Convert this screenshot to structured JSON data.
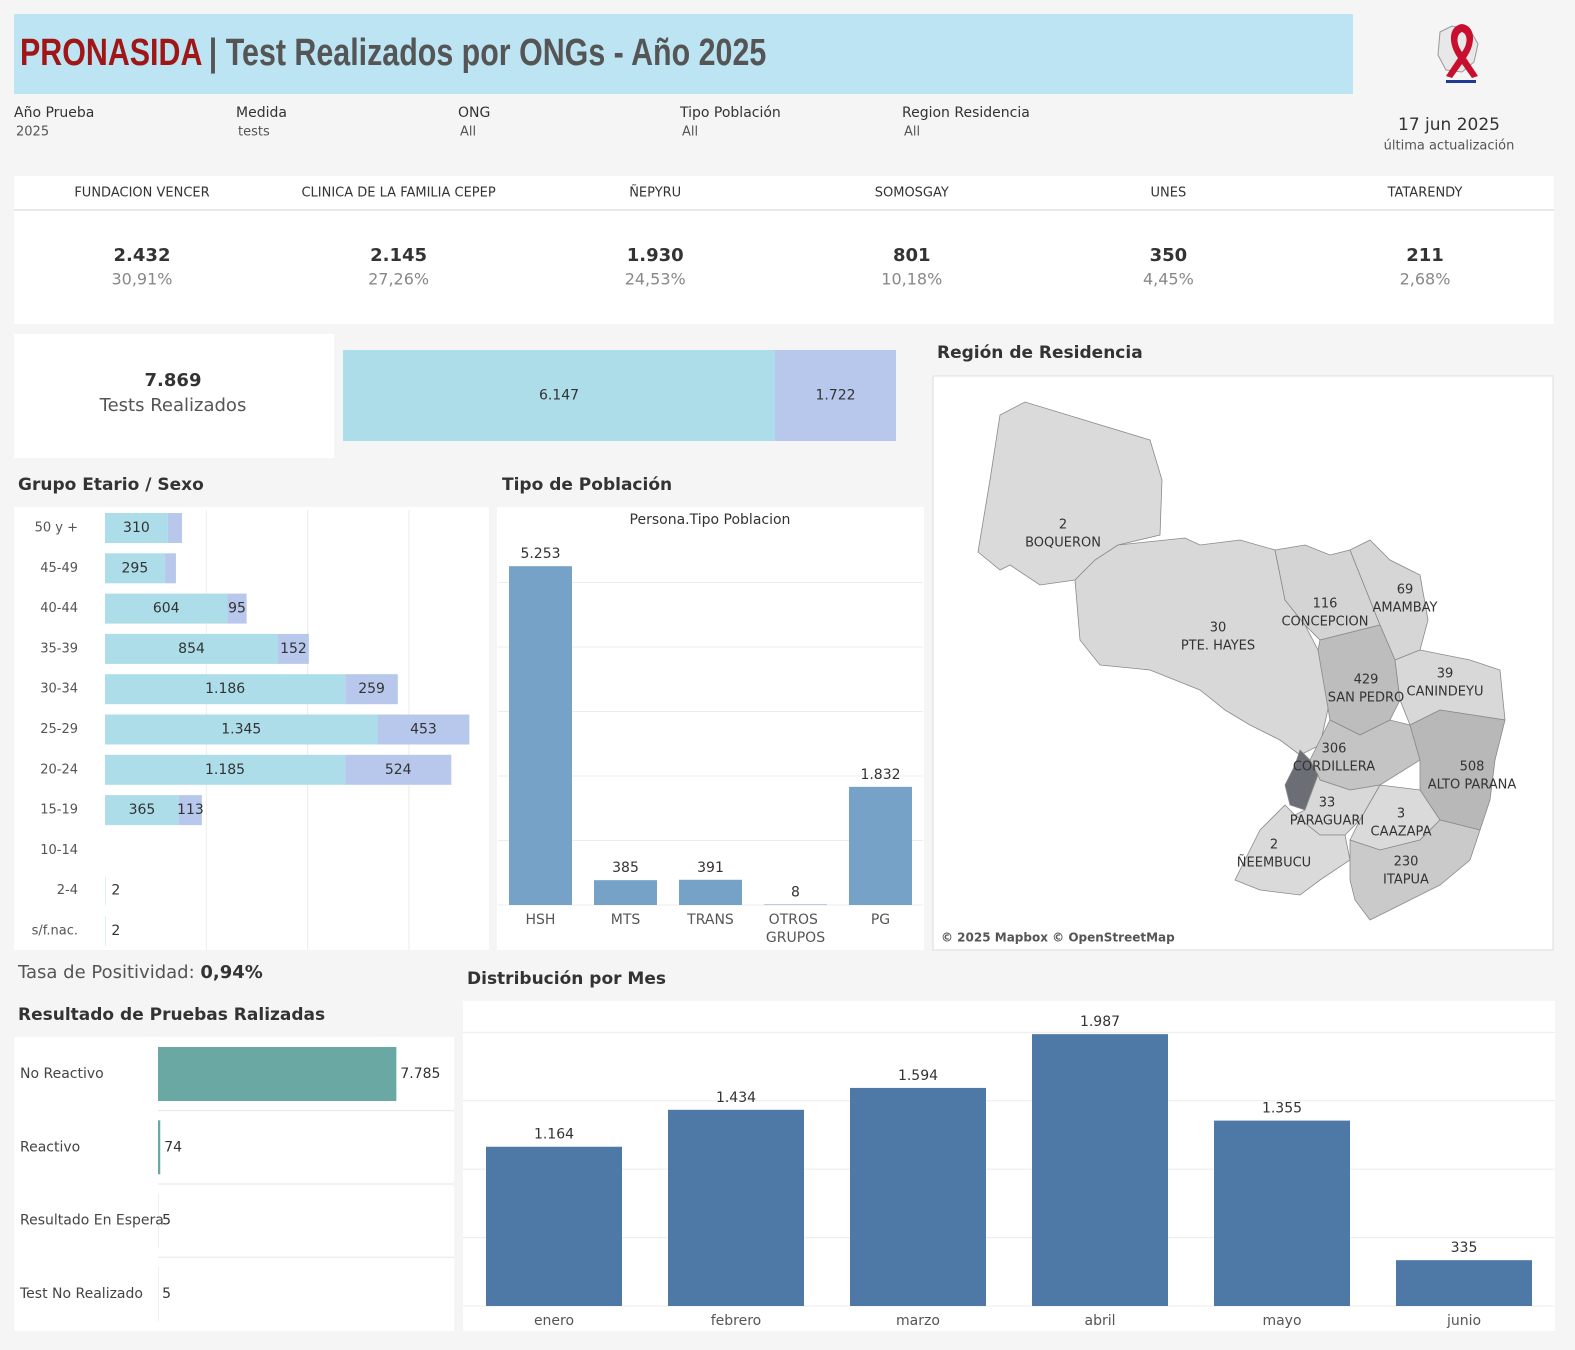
{
  "header": {
    "brand": "PRONASIDA",
    "title": "| Test Realizados por ONGs - Año 2025"
  },
  "update": {
    "date": "17 jun 2025",
    "label": "última actualización"
  },
  "filters": [
    {
      "label": "Año Prueba",
      "value": "2025"
    },
    {
      "label": "Medida",
      "value": "tests"
    },
    {
      "label": "ONG",
      "value": "All"
    },
    {
      "label": "Tipo Población",
      "value": "All"
    },
    {
      "label": "Region Residencia",
      "value": "All"
    }
  ],
  "ngos": [
    {
      "name": "FUNDACION VENCER",
      "value": "2.432",
      "share": "30,91%"
    },
    {
      "name": "CLINICA DE LA FAMILIA CEPEP",
      "value": "2.145",
      "share": "27,26%"
    },
    {
      "name": "ÑEPYRU",
      "value": "1.930",
      "share": "24,53%"
    },
    {
      "name": "SOMOSGAY",
      "value": "801",
      "share": "10,18%"
    },
    {
      "name": "UNES",
      "value": "350",
      "share": "4,45%"
    },
    {
      "name": "TATARENDY",
      "value": "211",
      "share": "2,68%"
    }
  ],
  "total": {
    "value": "7.869",
    "label": "Tests Realizados"
  },
  "positivity": {
    "label": "Tasa de Positividad: ",
    "value": "0,94%"
  },
  "map": {
    "title": "Región de Residencia",
    "credit": "© 2025 Mapbox © OpenStreetMap",
    "regions": [
      {
        "name": "BOQUERON",
        "value": "2"
      },
      {
        "name": "PTE. HAYES",
        "value": "30"
      },
      {
        "name": "CONCEPCION",
        "value": "116"
      },
      {
        "name": "AMAMBAY",
        "value": "69"
      },
      {
        "name": "SAN PEDRO",
        "value": "429"
      },
      {
        "name": "CANINDEYU",
        "value": "39"
      },
      {
        "name": "CORDILLERA",
        "value": "306"
      },
      {
        "name": "ALTO PARANA",
        "value": "508"
      },
      {
        "name": "PARAGUARI",
        "value": "33"
      },
      {
        "name": "CAAZAPA",
        "value": "3"
      },
      {
        "name": "ÑEEMBUCU",
        "value": "2"
      },
      {
        "name": "ITAPUA",
        "value": "230"
      }
    ]
  },
  "chart_data": [
    {
      "type": "split",
      "series": [
        {
          "color": "#acdde9",
          "values": [
            6147
          ],
          "value_labels": [
            "6.147"
          ]
        },
        {
          "color": "#b8c8ec",
          "values": [
            1722
          ],
          "value_labels": [
            "1.722"
          ]
        }
      ]
    },
    {
      "type": "hstack",
      "title": "Grupo Etario / Sexo",
      "categories": [
        "50 y +",
        "45-49",
        "40-44",
        "35-39",
        "30-34",
        "25-29",
        "20-24",
        "15-19",
        "10-14",
        "2-4",
        "s/f.nac."
      ],
      "series": [
        {
          "color": "#acdde9",
          "values": [
            310,
            295,
            604,
            854,
            1186,
            1345,
            1185,
            365,
            null,
            2,
            2
          ],
          "value_labels": [
            "310",
            "295",
            "604",
            "854",
            "1.186",
            "1.345",
            "1.185",
            "365",
            null,
            "2",
            "2"
          ]
        },
        {
          "color": "#b8c8ec",
          "values": [
            70,
            55,
            95,
            152,
            259,
            453,
            524,
            113,
            null,
            null,
            null
          ],
          "value_labels": [
            null,
            null,
            "95",
            "152",
            "259",
            "453",
            "524",
            "113",
            null,
            null,
            null
          ]
        }
      ],
      "xlim": [
        0,
        1900
      ],
      "xticks": [
        500,
        1000,
        1500
      ],
      "grid": true
    },
    {
      "type": "bar",
      "title": "Tipo de Población",
      "subtitle": "Persona.Tipo Poblacion",
      "categories": [
        "HSH",
        "MTS",
        "TRANS",
        "OTROS GRUPOS",
        "PG"
      ],
      "values": [
        5253,
        385,
        391,
        8,
        1832
      ],
      "value_labels": [
        "5.253",
        "385",
        "391",
        "8",
        "1.832"
      ],
      "color": "#76a2c8",
      "ylim": [
        0,
        6000
      ],
      "yticks": [
        0,
        1000,
        2000,
        3000,
        4000,
        5000
      ],
      "grid": true
    },
    {
      "type": "hbar",
      "title": "Resultado de Pruebas Ralizadas",
      "categories": [
        "No Reactivo",
        "Reactivo",
        "Resultado En Espera",
        "Test No Realizado"
      ],
      "values": [
        7785,
        74,
        5,
        5
      ],
      "value_labels": [
        "7.785",
        "74",
        "5",
        "5"
      ],
      "color": "#6aa9a3",
      "xlim": [
        0,
        9700
      ]
    },
    {
      "type": "bar",
      "title": "Distribución por Mes",
      "categories": [
        "enero",
        "febrero",
        "marzo",
        "abril",
        "mayo",
        "junio"
      ],
      "values": [
        1164,
        1434,
        1594,
        1987,
        1355,
        335
      ],
      "value_labels": [
        "1.164",
        "1.434",
        "1.594",
        "1.987",
        "1.355",
        "335"
      ],
      "color": "#4e78a6",
      "ylim": [
        0,
        2200
      ],
      "yticks": [
        0,
        500,
        1000,
        1500,
        2000
      ],
      "grid": true
    }
  ]
}
